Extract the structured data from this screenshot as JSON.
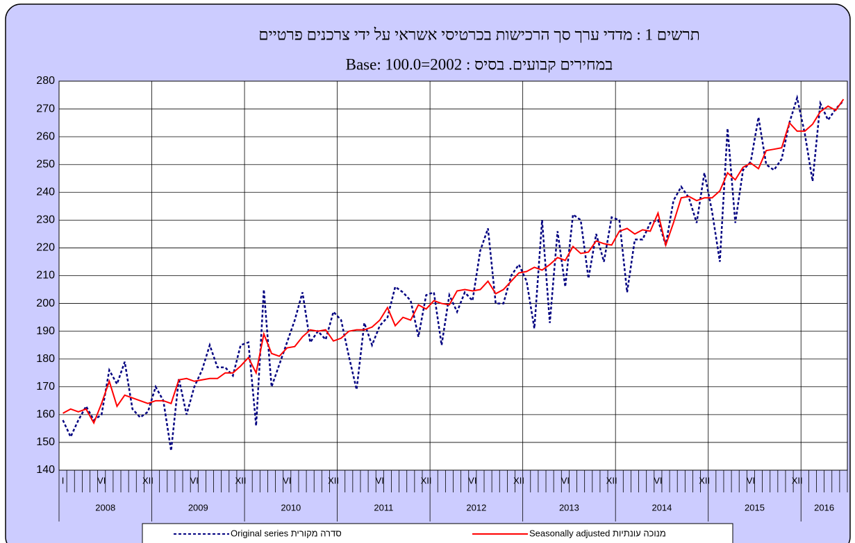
{
  "chart_data": {
    "type": "line",
    "title": "תרשים 1 : מדדי ערך סך הרכישות בכרטיסי אשראי על ידי צרכנים פרטיים",
    "subtitle": "במחירים קבועים. בסיס : 2002=100.0 :Base",
    "categories": [
      "I",
      null,
      null,
      null,
      null,
      "VI",
      null,
      null,
      null,
      null,
      null,
      "XII",
      null,
      null,
      null,
      null,
      null,
      "VI",
      null,
      null,
      null,
      null,
      null,
      "XII",
      null,
      null,
      null,
      null,
      null,
      "VI",
      null,
      null,
      null,
      null,
      null,
      "XII",
      null,
      null,
      null,
      null,
      null,
      "VI",
      null,
      null,
      null,
      null,
      null,
      "XII",
      null,
      null,
      null,
      null,
      null,
      "VI",
      null,
      null,
      null,
      null,
      null,
      "XII",
      null,
      null,
      null,
      null,
      null,
      "VI",
      null,
      null,
      null,
      null,
      null,
      "XII",
      null,
      null,
      null,
      null,
      null,
      "VI",
      null,
      null,
      null,
      null,
      null,
      "XII",
      null,
      null,
      null,
      null,
      null,
      "VI",
      null,
      null,
      null,
      null,
      null,
      "XII",
      null,
      null,
      null,
      null,
      null,
      null
    ],
    "years": [
      "2008",
      "2009",
      "2010",
      "2011",
      "2012",
      "2013",
      "2014",
      "2015",
      "2016"
    ],
    "series": [
      {
        "name": "Original series סדרה מקורית",
        "color": "#000080",
        "dashed": true,
        "values": [
          158,
          152,
          158,
          163,
          158,
          160,
          176,
          171,
          179,
          162,
          159,
          161,
          170,
          165,
          147,
          173,
          160,
          170,
          176,
          185,
          177,
          177,
          174,
          185,
          186,
          156,
          205,
          170,
          178,
          186,
          194,
          204,
          186,
          190,
          187,
          197,
          194,
          181,
          169,
          193,
          185,
          192,
          195,
          206,
          204,
          201,
          188,
          203,
          204,
          185,
          203,
          197,
          204,
          201,
          219,
          227,
          200,
          200,
          210,
          214,
          208,
          191,
          230,
          193,
          226,
          206,
          232,
          230,
          209,
          225,
          215,
          231,
          230,
          204,
          223,
          223,
          229,
          230,
          221,
          237,
          242,
          238,
          229,
          247,
          233,
          215,
          263,
          229,
          248,
          251,
          267,
          250,
          248,
          252,
          265,
          274,
          261,
          244,
          272,
          266,
          270,
          273
        ]
      },
      {
        "name": "Seasonally adjusted מנוכה עונתיות",
        "color": "#ff0000",
        "dashed": false,
        "values": [
          160.5,
          162,
          161,
          162,
          157,
          164,
          172,
          163,
          167,
          166,
          165,
          164,
          165,
          165,
          164,
          172.5,
          173,
          172,
          172.5,
          173,
          173,
          175,
          175,
          177.5,
          180.5,
          175,
          189,
          182,
          181,
          184,
          184.5,
          188,
          190.5,
          190,
          190.5,
          186.5,
          187.5,
          190,
          190.5,
          190.5,
          191.5,
          194,
          198.5,
          192,
          195,
          194,
          199.5,
          198,
          201,
          200,
          199.5,
          204.5,
          205,
          204.5,
          205,
          208,
          203.5,
          205,
          208,
          211,
          211.5,
          213,
          212,
          214,
          216.5,
          215.5,
          220.5,
          218,
          218.5,
          222.5,
          221.5,
          221,
          226,
          227,
          225,
          226.5,
          226,
          232.5,
          221,
          229,
          238,
          238.5,
          237,
          238,
          238,
          240.5,
          247,
          244.5,
          249,
          250.5,
          248.5,
          255,
          255.5,
          256,
          265,
          262,
          262,
          264.5,
          269,
          271,
          269.5,
          273.5
        ]
      }
    ],
    "ylim": [
      140,
      280
    ],
    "yticks": [
      140,
      150,
      160,
      170,
      180,
      190,
      200,
      210,
      220,
      230,
      240,
      250,
      260,
      270,
      280
    ],
    "grid": true
  }
}
